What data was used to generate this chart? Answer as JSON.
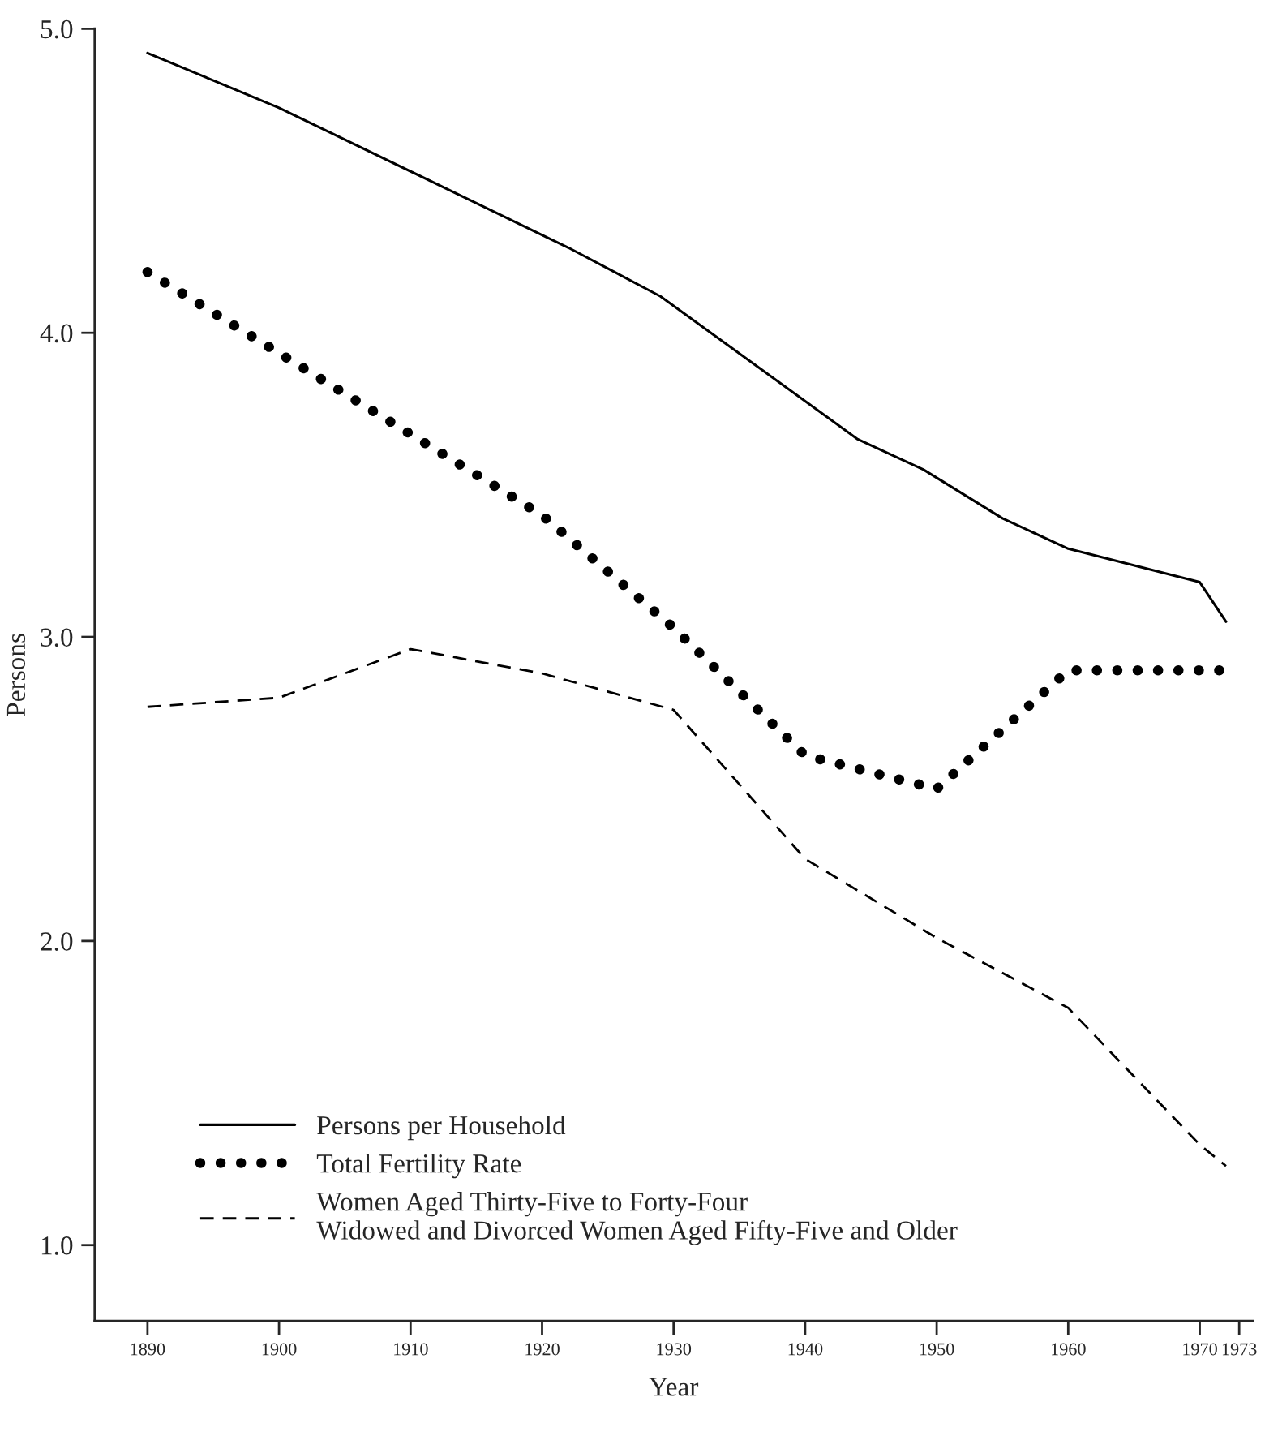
{
  "chart_data": {
    "type": "line",
    "xlabel": "Year",
    "ylabel": "Persons",
    "xlim": [
      1886,
      1974
    ],
    "ylim": [
      0.75,
      5.0
    ],
    "xticks": [
      1890,
      1900,
      1910,
      1920,
      1930,
      1940,
      1950,
      1960,
      1970,
      1973
    ],
    "yticks": [
      {
        "value": 1,
        "label": "1.0"
      },
      {
        "value": 2,
        "label": "2.0"
      },
      {
        "value": 3,
        "label": "3.0"
      },
      {
        "value": 4,
        "label": "4.0"
      },
      {
        "value": 5,
        "label": "5.0"
      }
    ],
    "grid": false,
    "legend": "bottom left",
    "series": [
      {
        "name": "Persons per Household",
        "color": "#000000",
        "line_style": "solid",
        "x": [
          1890,
          1900,
          1922,
          1929,
          1944,
          1949,
          1955,
          1960,
          1970,
          1972
        ],
        "values": [
          4.92,
          4.74,
          4.28,
          4.12,
          3.65,
          3.55,
          3.39,
          3.29,
          3.18,
          3.05
        ]
      },
      {
        "name": "Total Fertility Rate",
        "color": "#000000",
        "line_style": "dotted",
        "x": [
          1890,
          1920,
          1930,
          1940,
          1950,
          1960,
          1972
        ],
        "values": [
          4.2,
          3.4,
          3.03,
          2.61,
          2.5,
          2.89,
          2.89
        ]
      },
      {
        "name": "Women Aged Thirty-Five to Forty-Four\nWidowed and Divorced Women Aged Fifty-Five and Older",
        "color": "#000000",
        "line_style": "dashed",
        "x": [
          1890,
          1900,
          1910,
          1920,
          1930,
          1940,
          1950,
          1960,
          1970,
          1972
        ],
        "values": [
          2.77,
          2.8,
          2.96,
          2.88,
          2.76,
          2.27,
          2.01,
          1.78,
          1.33,
          1.26
        ]
      }
    ]
  }
}
